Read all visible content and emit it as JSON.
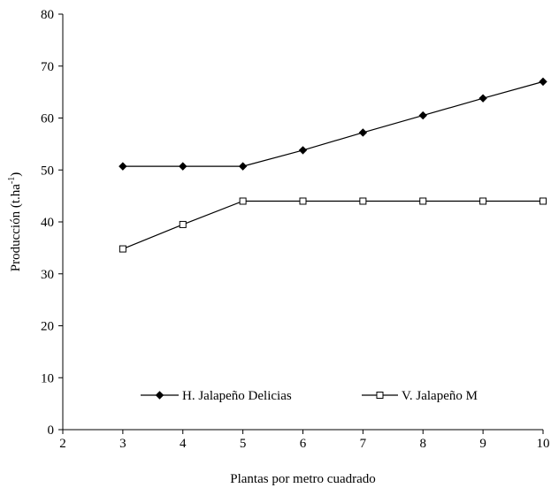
{
  "chart_data": {
    "type": "line",
    "xlabel": "Plantas por metro cuadrado",
    "ylabel_main": "Producción (t.ha",
    "ylabel_sup": "-1",
    "ylabel_close": ")",
    "xlim": [
      2,
      10
    ],
    "ylim": [
      0,
      80
    ],
    "xticks": [
      2,
      3,
      4,
      5,
      6,
      7,
      8,
      9,
      10
    ],
    "yticks": [
      0,
      10,
      20,
      30,
      40,
      50,
      60,
      70,
      80
    ],
    "grid": false,
    "legend_position": "bottom",
    "series": [
      {
        "name": "H. Jalapeño Delicias",
        "marker": "filled-diamond",
        "color": "#000000",
        "x": [
          3,
          4,
          5,
          6,
          7,
          8,
          9,
          10
        ],
        "y": [
          50.7,
          50.7,
          50.7,
          53.8,
          57.2,
          60.5,
          63.8,
          67.0
        ]
      },
      {
        "name": "V. Jalapeño M",
        "marker": "open-square",
        "color": "#000000",
        "x": [
          3,
          4,
          5,
          6,
          7,
          8,
          9,
          10
        ],
        "y": [
          34.8,
          39.5,
          44.0,
          44.0,
          44.0,
          44.0,
          44.0,
          44.0
        ]
      }
    ]
  }
}
